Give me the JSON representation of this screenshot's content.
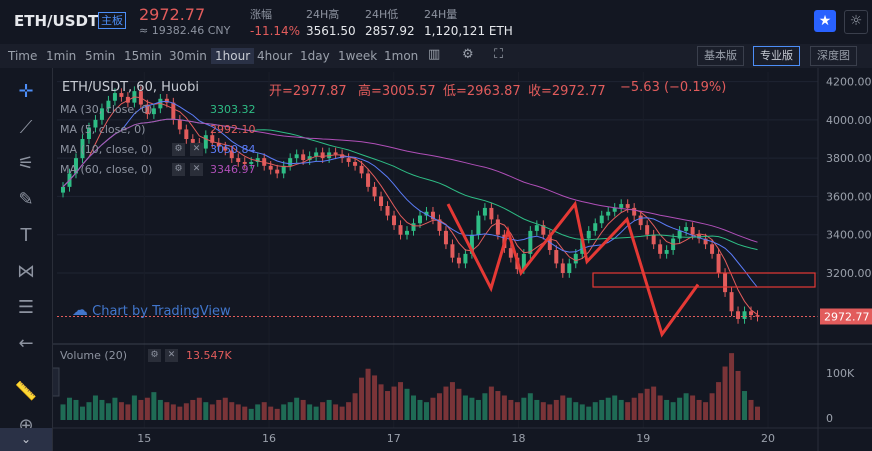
{
  "header": {
    "pair": "ETH/USDT",
    "tag": "主板",
    "price": "2972.77",
    "cny": "≈ 19382.46 CNY",
    "stats": [
      {
        "label": "涨幅",
        "value": "-11.14%"
      },
      {
        "label": "24H高",
        "value": "3561.50"
      },
      {
        "label": "24H低",
        "value": "2857.92"
      },
      {
        "label": "24H量",
        "value": "1,120,121 ETH"
      }
    ]
  },
  "toolbar": {
    "timeframes": [
      "Time",
      "1min",
      "5min",
      "15min",
      "30min",
      "1hour",
      "4hour",
      "1day",
      "1week",
      "1mon"
    ],
    "active": "1hour",
    "views": [
      "基本版",
      "专业版",
      "深度图"
    ],
    "active_view": "专业版"
  },
  "legend": {
    "title": "ETH/USDT, 60, Huobi",
    "open": "开=2977.87",
    "high": "高=3005.57",
    "low": "低=2963.87",
    "close": "收=2972.77",
    "change": "−5.63 (−0.19%)",
    "ma": [
      {
        "label": "MA (30, close, 0)",
        "value": "3303.32",
        "color": "#2ebd85"
      },
      {
        "label": "MA (5, close, 0)",
        "value": "2992.10",
        "color": "#e25c5c"
      },
      {
        "label": "MA (10, close, 0)",
        "value": "3050.84",
        "color": "#5b7cf7"
      },
      {
        "label": "MA (60, close, 0)",
        "value": "3346.97",
        "color": "#b04fb8"
      }
    ]
  },
  "watermark": "Chart by TradingView",
  "volume": {
    "label": "Volume (20)",
    "value": "13.547K"
  },
  "chart_data": {
    "type": "candlestick",
    "ylim": [
      2850,
      4250
    ],
    "y_ticks": [
      3200,
      3400,
      3600,
      3800,
      4000,
      4200
    ],
    "volume_ticks": [
      "100K",
      "0"
    ],
    "x_ticks": [
      "15",
      "16",
      "17",
      "18",
      "19",
      "20"
    ],
    "last_price": "2972.77",
    "close_series": [
      3650,
      3720,
      3800,
      3900,
      3960,
      4000,
      4060,
      4100,
      4140,
      4120,
      4090,
      4150,
      4080,
      4030,
      4060,
      4110,
      4090,
      4000,
      3950,
      3900,
      3880,
      3850,
      3920,
      3880,
      3860,
      3840,
      3800,
      3780,
      3770,
      3780,
      3800,
      3760,
      3740,
      3720,
      3760,
      3800,
      3820,
      3790,
      3810,
      3830,
      3800,
      3830,
      3820,
      3800,
      3780,
      3760,
      3720,
      3650,
      3600,
      3550,
      3500,
      3450,
      3400,
      3420,
      3460,
      3500,
      3520,
      3480,
      3420,
      3350,
      3280,
      3250,
      3300,
      3400,
      3500,
      3540,
      3480,
      3400,
      3330,
      3280,
      3220,
      3300,
      3420,
      3450,
      3400,
      3320,
      3250,
      3200,
      3250,
      3300,
      3380,
      3420,
      3460,
      3500,
      3520,
      3540,
      3560,
      3540,
      3500,
      3450,
      3400,
      3350,
      3300,
      3320,
      3380,
      3420,
      3440,
      3400,
      3380,
      3350,
      3300,
      3200,
      3100,
      3000,
      2960,
      3000,
      2980,
      2972
    ],
    "volume_series": [
      14,
      20,
      18,
      12,
      16,
      22,
      18,
      15,
      20,
      16,
      14,
      22,
      18,
      20,
      25,
      18,
      16,
      14,
      12,
      15,
      18,
      20,
      16,
      14,
      18,
      20,
      16,
      14,
      12,
      10,
      14,
      16,
      12,
      10,
      14,
      16,
      20,
      18,
      14,
      12,
      16,
      18,
      14,
      12,
      16,
      24,
      38,
      46,
      40,
      32,
      26,
      30,
      34,
      28,
      22,
      18,
      16,
      20,
      24,
      30,
      34,
      28,
      22,
      20,
      18,
      24,
      30,
      26,
      22,
      18,
      16,
      20,
      24,
      18,
      16,
      14,
      18,
      22,
      20,
      16,
      14,
      12,
      16,
      18,
      20,
      22,
      18,
      16,
      20,
      24,
      28,
      30,
      22,
      18,
      16,
      20,
      24,
      22,
      18,
      16,
      24,
      34,
      48,
      60,
      44,
      26,
      18,
      12
    ]
  }
}
